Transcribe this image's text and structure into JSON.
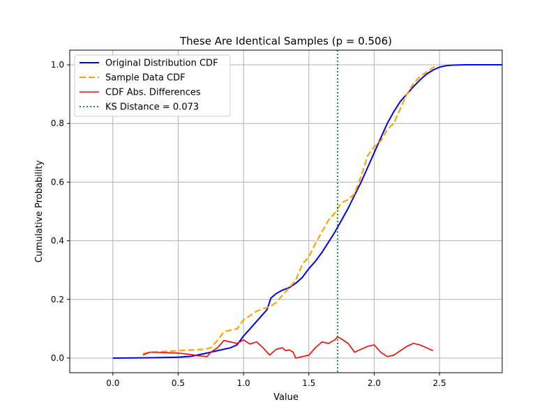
{
  "chart_data": {
    "type": "line",
    "title": "These Are Identical Samples      (p = 0.506)",
    "xlabel": "Value",
    "ylabel": "Cumulative Probability",
    "xlim": [
      -0.33,
      2.98
    ],
    "ylim": [
      -0.05,
      1.05
    ],
    "x_ticks": [
      0.0,
      0.5,
      1.0,
      1.5,
      2.0,
      2.5
    ],
    "x_tick_labels": [
      "0.0",
      "0.5",
      "1.0",
      "1.5",
      "2.0",
      "2.5"
    ],
    "y_ticks": [
      0.0,
      0.2,
      0.4,
      0.6,
      0.8,
      1.0
    ],
    "y_tick_labels": [
      "0.0",
      "0.2",
      "0.4",
      "0.6",
      "0.8",
      "1.0"
    ],
    "grid": true,
    "legend_position": "upper-left",
    "series": [
      {
        "name": "Original Distribution CDF",
        "color": "#0000ff",
        "style": "solid",
        "points": [
          [
            0.0,
            0.0
          ],
          [
            0.3,
            0.001
          ],
          [
            0.5,
            0.003
          ],
          [
            0.6,
            0.006
          ],
          [
            0.7,
            0.015
          ],
          [
            0.8,
            0.025
          ],
          [
            0.9,
            0.035
          ],
          [
            0.95,
            0.045
          ],
          [
            1.0,
            0.075
          ],
          [
            1.05,
            0.1
          ],
          [
            1.1,
            0.125
          ],
          [
            1.15,
            0.15
          ],
          [
            1.18,
            0.165
          ],
          [
            1.21,
            0.205
          ],
          [
            1.25,
            0.22
          ],
          [
            1.3,
            0.232
          ],
          [
            1.35,
            0.24
          ],
          [
            1.4,
            0.255
          ],
          [
            1.45,
            0.275
          ],
          [
            1.5,
            0.305
          ],
          [
            1.55,
            0.33
          ],
          [
            1.6,
            0.36
          ],
          [
            1.65,
            0.395
          ],
          [
            1.7,
            0.43
          ],
          [
            1.75,
            0.47
          ],
          [
            1.8,
            0.51
          ],
          [
            1.85,
            0.555
          ],
          [
            1.9,
            0.6
          ],
          [
            1.95,
            0.65
          ],
          [
            2.0,
            0.7
          ],
          [
            2.05,
            0.75
          ],
          [
            2.1,
            0.8
          ],
          [
            2.15,
            0.84
          ],
          [
            2.2,
            0.875
          ],
          [
            2.25,
            0.9
          ],
          [
            2.3,
            0.925
          ],
          [
            2.35,
            0.948
          ],
          [
            2.4,
            0.968
          ],
          [
            2.45,
            0.982
          ],
          [
            2.5,
            0.992
          ],
          [
            2.55,
            0.997
          ],
          [
            2.6,
            0.999
          ],
          [
            2.7,
            1.0
          ],
          [
            2.98,
            1.0
          ]
        ]
      },
      {
        "name": "Sample Data CDF",
        "color": "#ffa500",
        "style": "dashed",
        "points": [
          [
            0.23,
            0.015
          ],
          [
            0.3,
            0.02
          ],
          [
            0.5,
            0.025
          ],
          [
            0.7,
            0.03
          ],
          [
            0.75,
            0.035
          ],
          [
            0.8,
            0.06
          ],
          [
            0.85,
            0.09
          ],
          [
            0.95,
            0.1
          ],
          [
            1.0,
            0.13
          ],
          [
            1.1,
            0.16
          ],
          [
            1.15,
            0.168
          ],
          [
            1.2,
            0.175
          ],
          [
            1.25,
            0.19
          ],
          [
            1.3,
            0.215
          ],
          [
            1.35,
            0.24
          ],
          [
            1.4,
            0.265
          ],
          [
            1.45,
            0.32
          ],
          [
            1.5,
            0.345
          ],
          [
            1.55,
            0.39
          ],
          [
            1.6,
            0.43
          ],
          [
            1.65,
            0.47
          ],
          [
            1.7,
            0.495
          ],
          [
            1.75,
            0.53
          ],
          [
            1.8,
            0.54
          ],
          [
            1.85,
            0.56
          ],
          [
            1.9,
            0.62
          ],
          [
            1.95,
            0.69
          ],
          [
            2.0,
            0.72
          ],
          [
            2.05,
            0.74
          ],
          [
            2.1,
            0.78
          ],
          [
            2.15,
            0.8
          ],
          [
            2.2,
            0.85
          ],
          [
            2.25,
            0.9
          ],
          [
            2.3,
            0.935
          ],
          [
            2.35,
            0.96
          ],
          [
            2.4,
            0.975
          ],
          [
            2.45,
            0.99
          ],
          [
            2.48,
            1.0
          ]
        ]
      },
      {
        "name": "CDF Abs. Differences",
        "color": "#ff0000",
        "style": "solid",
        "points": [
          [
            0.23,
            0.01
          ],
          [
            0.28,
            0.02
          ],
          [
            0.5,
            0.017
          ],
          [
            0.6,
            0.012
          ],
          [
            0.65,
            0.008
          ],
          [
            0.72,
            0.005
          ],
          [
            0.75,
            0.02
          ],
          [
            0.8,
            0.035
          ],
          [
            0.85,
            0.06
          ],
          [
            0.9,
            0.055
          ],
          [
            0.95,
            0.05
          ],
          [
            1.0,
            0.062
          ],
          [
            1.05,
            0.048
          ],
          [
            1.1,
            0.055
          ],
          [
            1.15,
            0.035
          ],
          [
            1.2,
            0.01
          ],
          [
            1.25,
            0.03
          ],
          [
            1.3,
            0.035
          ],
          [
            1.32,
            0.025
          ],
          [
            1.35,
            0.028
          ],
          [
            1.38,
            0.02
          ],
          [
            1.4,
            0.0
          ],
          [
            1.45,
            0.005
          ],
          [
            1.5,
            0.01
          ],
          [
            1.55,
            0.035
          ],
          [
            1.6,
            0.055
          ],
          [
            1.65,
            0.05
          ],
          [
            1.7,
            0.062
          ],
          [
            1.72,
            0.073
          ],
          [
            1.75,
            0.065
          ],
          [
            1.8,
            0.05
          ],
          [
            1.85,
            0.02
          ],
          [
            1.9,
            0.03
          ],
          [
            1.95,
            0.04
          ],
          [
            2.0,
            0.045
          ],
          [
            2.05,
            0.02
          ],
          [
            2.1,
            0.005
          ],
          [
            2.15,
            0.01
          ],
          [
            2.2,
            0.025
          ],
          [
            2.25,
            0.04
          ],
          [
            2.3,
            0.05
          ],
          [
            2.35,
            0.045
          ],
          [
            2.4,
            0.035
          ],
          [
            2.45,
            0.025
          ]
        ]
      },
      {
        "name": "KS Distance = 0.073",
        "color": "#008000",
        "style": "dotted",
        "x": 1.72
      }
    ]
  }
}
